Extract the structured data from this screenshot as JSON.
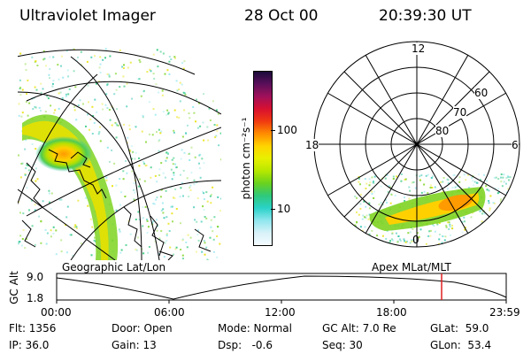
{
  "header": {
    "instrument": "Ultraviolet Imager",
    "date": "28 Oct 00",
    "time": "20:39:30 UT"
  },
  "colorbar": {
    "units_label": "photon cm⁻²s⁻¹",
    "ticks": [
      "100",
      "10"
    ],
    "colors": [
      "#1a0a3a",
      "#5a0f5a",
      "#a0105a",
      "#d81030",
      "#f03a10",
      "#ff8c00",
      "#ffd400",
      "#e8f000",
      "#b8e800",
      "#6ad21e",
      "#2fc87a",
      "#2ad2c8",
      "#8fe6ee",
      "#d8f2f8",
      "#f4fbff"
    ]
  },
  "left_map": {
    "label": "Geographic Lat/Lon",
    "colors": {
      "bright": "#ff9a00",
      "mid": "#e8e000",
      "low": "#7ed321",
      "faint": "#3cc8b4"
    }
  },
  "right_map": {
    "label": "Apex MLat/MLT",
    "mlt_labels": {
      "top": "12",
      "left": "18",
      "right": "6",
      "bottom": "0"
    },
    "lat_labels": [
      "60",
      "70",
      "80"
    ]
  },
  "timeline": {
    "ylabel": "GC Alt",
    "ymax": "9.0",
    "ymin": "1.8",
    "xticks": [
      "00:00",
      "06:00",
      "12:00",
      "18:00",
      "23:59"
    ],
    "current_marker_color": "#e02020"
  },
  "info": {
    "flt": "Flt: 1356",
    "ip": "IP: 36.0",
    "door": "Door: Open",
    "gain": "Gain: 13",
    "mode": "Mode: Normal",
    "dsp": "Dsp:   -0.6",
    "gcalt": "GC Alt: 7.0 Re",
    "seq": "Seq: 30",
    "glat": "GLat:  59.0",
    "glon": "GLon:  53.4"
  }
}
